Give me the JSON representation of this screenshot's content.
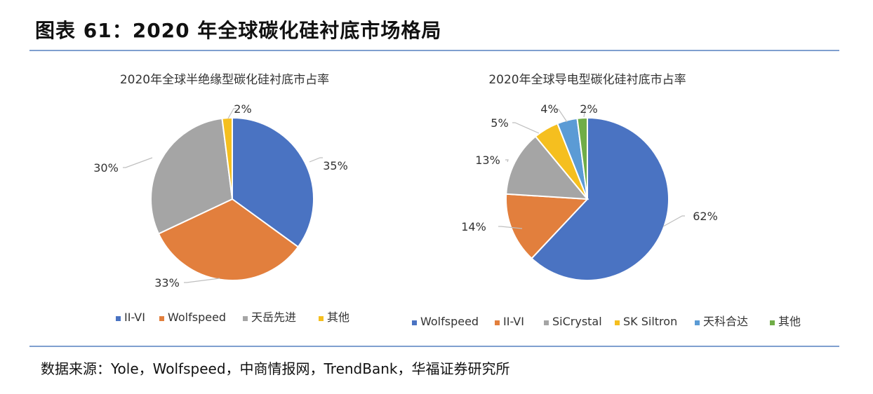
{
  "figure": {
    "title": "图表 61：2020 年全球碳化硅衬底市场格局",
    "source": "数据来源：Yole，Wolfspeed，中商情报网，TrendBank，华福证券研究所"
  },
  "chart_data": [
    {
      "type": "pie",
      "title": "2020年全球半绝缘型碳化硅衬底市占率",
      "categories": [
        "II-VI",
        "Wolfspeed",
        "天岳先进",
        "其他"
      ],
      "values": [
        35,
        33,
        30,
        2
      ],
      "value_labels": [
        "35%",
        "33%",
        "30%",
        "2%"
      ],
      "colors": [
        "#4a73c2",
        "#e27f3d",
        "#a5a5a5",
        "#f5bf1f"
      ],
      "legend_position": "bottom"
    },
    {
      "type": "pie",
      "title": "2020年全球导电型碳化硅衬底市占率",
      "categories": [
        "Wolfspeed",
        "II-VI",
        "SiCrystal",
        "SK Siltron",
        "天科合达",
        "其他"
      ],
      "values": [
        62,
        14,
        13,
        5,
        4,
        2
      ],
      "value_labels": [
        "62%",
        "14%",
        "13%",
        "5%",
        "4%",
        "2%"
      ],
      "colors": [
        "#4a73c2",
        "#e27f3d",
        "#a5a5a5",
        "#f5bf1f",
        "#5b9bd5",
        "#70ad47"
      ],
      "legend_position": "bottom"
    }
  ]
}
